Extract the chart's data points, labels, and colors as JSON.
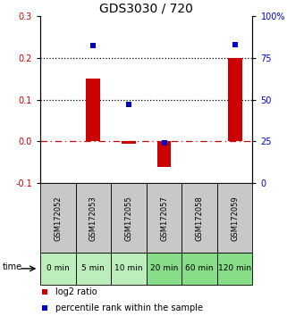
{
  "title": "GDS3030 / 720",
  "samples": [
    "GSM172052",
    "GSM172053",
    "GSM172055",
    "GSM172057",
    "GSM172058",
    "GSM172059"
  ],
  "time_labels": [
    "0 min",
    "5 min",
    "10 min",
    "20 min",
    "60 min",
    "120 min"
  ],
  "log2_ratio": [
    0.0,
    0.15,
    -0.005,
    -0.06,
    0.0,
    0.2
  ],
  "percentile_rank": [
    null,
    82,
    47,
    24,
    null,
    83
  ],
  "ylim_left": [
    -0.1,
    0.3
  ],
  "ylim_right": [
    0,
    100
  ],
  "yticks_left": [
    -0.1,
    0.0,
    0.1,
    0.2,
    0.3
  ],
  "yticks_right": [
    0,
    25,
    50,
    75,
    100
  ],
  "ytick_labels_right": [
    "0",
    "25",
    "50",
    "75",
    "100%"
  ],
  "hlines_dotted": [
    0.1,
    0.2
  ],
  "hline_dashdot_val": 0.0,
  "bar_color": "#cc0000",
  "dot_color": "#0000cc",
  "title_fontsize": 10,
  "tick_fontsize": 7,
  "bg_color_gsm": "#c8c8c8",
  "bg_color_time_0": "#bbeebb",
  "bg_color_time_1": "#88dd88",
  "time_label_fontsize": 6.5,
  "gsm_label_fontsize": 6.0,
  "legend_fontsize": 7.0
}
